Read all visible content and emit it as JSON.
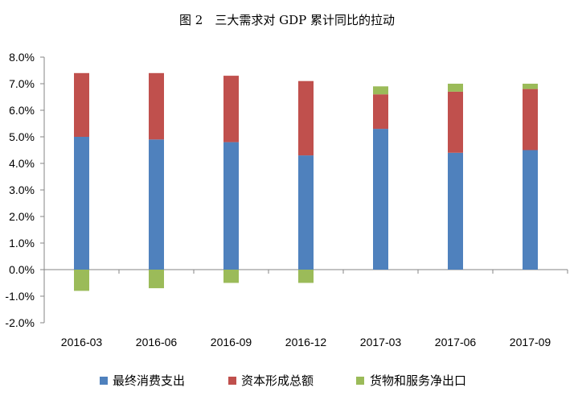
{
  "chart_data": {
    "type": "bar",
    "stacked": true,
    "title": "图 2　三大需求对 GDP 累计同比的拉动",
    "categories": [
      "2016-03",
      "2016-06",
      "2016-09",
      "2016-12",
      "2017-03",
      "2017-06",
      "2017-09"
    ],
    "series": [
      {
        "name": "最终消费支出",
        "color": "#4F81BD",
        "values": [
          5.0,
          4.9,
          4.8,
          4.3,
          5.3,
          4.4,
          4.5
        ]
      },
      {
        "name": "资本形成总额",
        "color": "#C0504D",
        "values": [
          2.4,
          2.5,
          2.5,
          2.8,
          1.3,
          2.3,
          2.3
        ]
      },
      {
        "name": "货物和服务净出口",
        "color": "#9BBB59",
        "values": [
          -0.8,
          -0.7,
          -0.5,
          -0.5,
          0.3,
          0.3,
          0.2
        ]
      }
    ],
    "yaxis": {
      "min": -2.0,
      "max": 8.0,
      "step": 1.0,
      "tick_labels": [
        "-2.0%",
        "-1.0%",
        "0.0%",
        "1.0%",
        "2.0%",
        "3.0%",
        "4.0%",
        "5.0%",
        "6.0%",
        "7.0%",
        "8.0%"
      ]
    },
    "xlabel": "",
    "ylabel": "",
    "grid": false,
    "legend_position": "bottom"
  }
}
